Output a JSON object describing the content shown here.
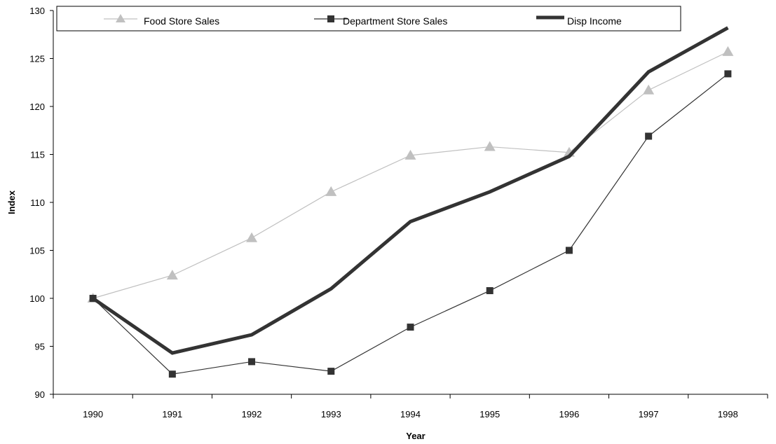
{
  "chart_data": {
    "type": "line",
    "title": "",
    "xlabel": "Year",
    "ylabel": "Index",
    "categories": [
      "1990",
      "1991",
      "1992",
      "1993",
      "1994",
      "1995",
      "1996",
      "1997",
      "1998"
    ],
    "ylim": [
      90,
      130
    ],
    "yticks": [
      90,
      95,
      100,
      105,
      110,
      115,
      120,
      125,
      130
    ],
    "grid": false,
    "legend_position": "top",
    "series": [
      {
        "name": "Food Store Sales",
        "values": [
          100.0,
          102.4,
          106.3,
          111.1,
          114.9,
          115.8,
          115.2,
          121.7,
          125.7
        ],
        "color": "#c0c0c0",
        "marker": "triangle"
      },
      {
        "name": "Department Store Sales",
        "values": [
          100.0,
          92.1,
          93.4,
          92.4,
          97.0,
          100.8,
          105.0,
          116.9,
          123.4
        ],
        "color": "#333333",
        "marker": "square"
      },
      {
        "name": "Disp Income",
        "values": [
          100.0,
          94.3,
          96.2,
          101.0,
          108.0,
          111.1,
          114.8,
          123.6,
          128.2
        ],
        "color": "#333333",
        "marker": "none"
      }
    ]
  }
}
